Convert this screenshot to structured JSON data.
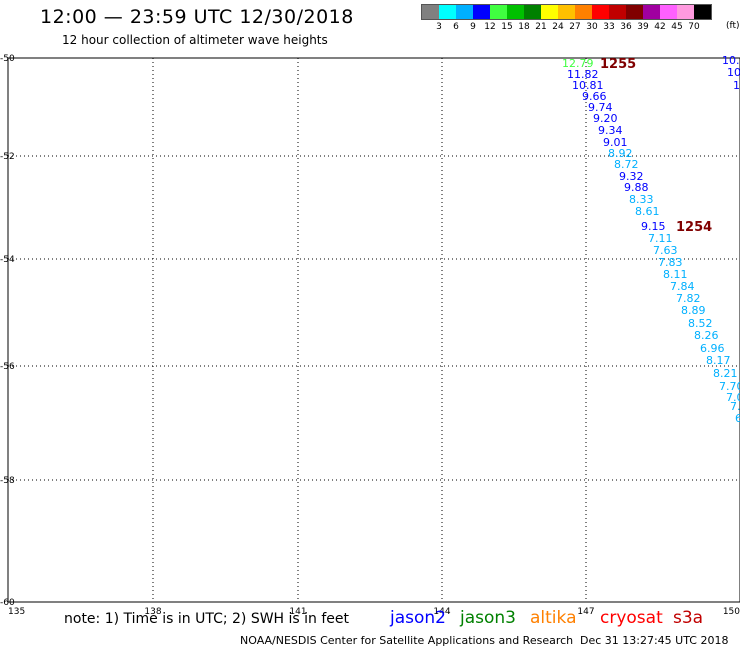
{
  "header": {
    "title": "12:00 — 23:59 UTC 12/30/2018",
    "subtitle": "12 hour collection of altimeter wave heights"
  },
  "legend": {
    "colors": [
      "#808080",
      "#00ffff",
      "#00b0ff",
      "#0000ff",
      "#40ff40",
      "#00c000",
      "#008000",
      "#ffff00",
      "#ffc000",
      "#ff8000",
      "#ff0000",
      "#c00000",
      "#800000",
      "#a000a0",
      "#ff60ff",
      "#ff9adf",
      "#000000"
    ],
    "labels": [
      "3",
      "6",
      "9",
      "12",
      "15",
      "18",
      "21",
      "24",
      "27",
      "30",
      "33",
      "36",
      "39",
      "42",
      "45",
      "70"
    ],
    "unit": "(ft)"
  },
  "axes": {
    "lat_labels": [
      "-50",
      "-52",
      "-54",
      "-56",
      "-58",
      "-60"
    ],
    "lon_labels": [
      "135",
      "138",
      "141",
      "144",
      "147",
      "150"
    ]
  },
  "pass_labels": [
    {
      "text": "1255",
      "color": "#800000"
    },
    {
      "text": "1254",
      "color": "#800000"
    }
  ],
  "wave_readings": [
    {
      "text": "12.79",
      "color": "#40ff40"
    },
    {
      "text": "11.82",
      "color": "#0000ff"
    },
    {
      "text": "10.81",
      "color": "#0000ff"
    },
    {
      "text": "9.66",
      "color": "#0000ff"
    },
    {
      "text": "9.74",
      "color": "#0000ff"
    },
    {
      "text": "9.20",
      "color": "#0000ff"
    },
    {
      "text": "9.34",
      "color": "#0000ff"
    },
    {
      "text": "9.01",
      "color": "#0000ff"
    },
    {
      "text": "8.92",
      "color": "#00b0ff"
    },
    {
      "text": "8.72",
      "color": "#00b0ff"
    },
    {
      "text": "9.32",
      "color": "#0000ff"
    },
    {
      "text": "9.88",
      "color": "#0000ff"
    },
    {
      "text": "8.33",
      "color": "#00b0ff"
    },
    {
      "text": "8.61",
      "color": "#00b0ff"
    },
    {
      "text": "9.15",
      "color": "#0000ff"
    },
    {
      "text": "7.11",
      "color": "#00b0ff"
    },
    {
      "text": "7.63",
      "color": "#00b0ff"
    },
    {
      "text": "7.83",
      "color": "#00b0ff"
    },
    {
      "text": "8.11",
      "color": "#00b0ff"
    },
    {
      "text": "7.84",
      "color": "#00b0ff"
    },
    {
      "text": "7.82",
      "color": "#00b0ff"
    },
    {
      "text": "8.89",
      "color": "#00b0ff"
    },
    {
      "text": "8.52",
      "color": "#00b0ff"
    },
    {
      "text": "8.26",
      "color": "#00b0ff"
    },
    {
      "text": "6.96",
      "color": "#00b0ff"
    },
    {
      "text": "8.17",
      "color": "#00b0ff"
    },
    {
      "text": "8.21",
      "color": "#00b0ff"
    },
    {
      "text": "7.70",
      "color": "#00b0ff"
    },
    {
      "text": "7.0",
      "color": "#00b0ff"
    },
    {
      "text": "7.",
      "color": "#00b0ff"
    },
    {
      "text": "6",
      "color": "#00b0ff"
    },
    {
      "text": "10.9",
      "color": "#0000ff"
    },
    {
      "text": "10",
      "color": "#0000ff"
    },
    {
      "text": "1",
      "color": "#0000ff"
    }
  ],
  "footer": {
    "note": "note: 1) Time is in UTC; 2) SWH is in feet",
    "satellites": [
      {
        "name": "jason2",
        "color": "#0000ff"
      },
      {
        "name": "jason3",
        "color": "#008000"
      },
      {
        "name": "altika",
        "color": "#ff8000"
      },
      {
        "name": "cryosat",
        "color": "#ff0000"
      },
      {
        "name": "s3a",
        "color": "#c00000"
      }
    ],
    "credit": "NOAA/NESDIS Center for Satellite Applications and Research",
    "timestamp": "Dec 31 13:27:45 UTC 2018"
  }
}
